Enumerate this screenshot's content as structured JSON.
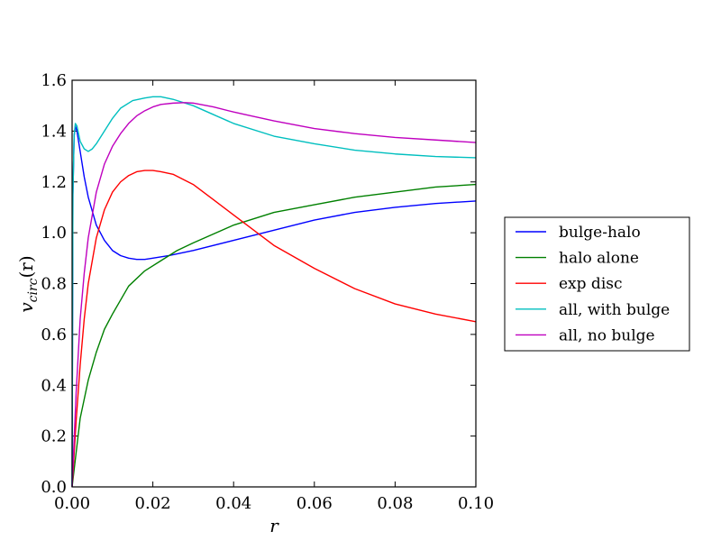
{
  "chart_data": {
    "type": "line",
    "xlabel": "r",
    "ylabel": "v_circ(r)",
    "ylabel_main": "v",
    "ylabel_sub": "circ",
    "ylabel_arg": "(r)",
    "xlim": [
      0.0,
      0.1
    ],
    "ylim": [
      0.0,
      1.6
    ],
    "xticks": [
      0.0,
      0.02,
      0.04,
      0.06,
      0.08,
      0.1
    ],
    "xtick_labels": [
      "0.00",
      "0.02",
      "0.04",
      "0.06",
      "0.08",
      "0.10"
    ],
    "yticks": [
      0.0,
      0.2,
      0.4,
      0.6,
      0.8,
      1.0,
      1.2,
      1.4,
      1.6
    ],
    "ytick_labels": [
      "0.0",
      "0.2",
      "0.4",
      "0.6",
      "0.8",
      "1.0",
      "1.2",
      "1.4",
      "1.6"
    ],
    "grid": false,
    "legend_position": "right, outside plot",
    "series": [
      {
        "name": "bulge-halo",
        "color": "#0000ff",
        "x": [
          0.0,
          0.0002,
          0.0005,
          0.0008,
          0.0012,
          0.002,
          0.003,
          0.004,
          0.006,
          0.008,
          0.01,
          0.012,
          0.014,
          0.016,
          0.018,
          0.02,
          0.024,
          0.03,
          0.04,
          0.05,
          0.06,
          0.07,
          0.08,
          0.09,
          0.1
        ],
        "y": [
          0.0,
          1.15,
          1.38,
          1.42,
          1.4,
          1.32,
          1.22,
          1.14,
          1.03,
          0.97,
          0.93,
          0.91,
          0.9,
          0.895,
          0.895,
          0.9,
          0.91,
          0.93,
          0.97,
          1.01,
          1.05,
          1.08,
          1.1,
          1.115,
          1.125
        ]
      },
      {
        "name": "halo alone",
        "color": "#008000",
        "x": [
          0.0,
          0.002,
          0.004,
          0.006,
          0.008,
          0.01,
          0.014,
          0.018,
          0.022,
          0.026,
          0.03,
          0.04,
          0.05,
          0.06,
          0.07,
          0.08,
          0.09,
          0.1
        ],
        "y": [
          0.0,
          0.27,
          0.42,
          0.53,
          0.62,
          0.68,
          0.79,
          0.85,
          0.89,
          0.93,
          0.96,
          1.03,
          1.08,
          1.11,
          1.14,
          1.16,
          1.18,
          1.19
        ]
      },
      {
        "name": "exp disc",
        "color": "#ff0000",
        "x": [
          0.0,
          0.001,
          0.002,
          0.003,
          0.004,
          0.006,
          0.008,
          0.01,
          0.012,
          0.014,
          0.016,
          0.018,
          0.02,
          0.022,
          0.025,
          0.03,
          0.035,
          0.04,
          0.045,
          0.05,
          0.06,
          0.07,
          0.08,
          0.09,
          0.1
        ],
        "y": [
          0.0,
          0.26,
          0.48,
          0.66,
          0.8,
          0.98,
          1.09,
          1.16,
          1.2,
          1.225,
          1.24,
          1.245,
          1.245,
          1.24,
          1.23,
          1.19,
          1.13,
          1.07,
          1.01,
          0.95,
          0.86,
          0.78,
          0.72,
          0.68,
          0.65
        ]
      },
      {
        "name": "all, with bulge",
        "color": "#00bfbf",
        "x": [
          0.0,
          0.0002,
          0.0005,
          0.0008,
          0.0012,
          0.002,
          0.003,
          0.004,
          0.005,
          0.006,
          0.008,
          0.01,
          0.012,
          0.015,
          0.018,
          0.02,
          0.022,
          0.025,
          0.03,
          0.035,
          0.04,
          0.05,
          0.06,
          0.07,
          0.08,
          0.09,
          0.1
        ],
        "y": [
          0.0,
          1.15,
          1.38,
          1.43,
          1.42,
          1.36,
          1.33,
          1.32,
          1.33,
          1.35,
          1.4,
          1.45,
          1.49,
          1.52,
          1.53,
          1.535,
          1.535,
          1.525,
          1.5,
          1.465,
          1.43,
          1.38,
          1.35,
          1.325,
          1.31,
          1.3,
          1.295
        ]
      },
      {
        "name": "all, no bulge",
        "color": "#bf00bf",
        "x": [
          0.0,
          0.001,
          0.002,
          0.003,
          0.004,
          0.006,
          0.008,
          0.01,
          0.012,
          0.014,
          0.016,
          0.018,
          0.02,
          0.022,
          0.025,
          0.028,
          0.03,
          0.035,
          0.04,
          0.05,
          0.06,
          0.07,
          0.08,
          0.09,
          0.1
        ],
        "y": [
          0.0,
          0.37,
          0.66,
          0.84,
          0.98,
          1.16,
          1.27,
          1.34,
          1.39,
          1.43,
          1.46,
          1.48,
          1.495,
          1.505,
          1.51,
          1.512,
          1.51,
          1.495,
          1.475,
          1.44,
          1.41,
          1.39,
          1.375,
          1.365,
          1.355
        ]
      }
    ]
  }
}
